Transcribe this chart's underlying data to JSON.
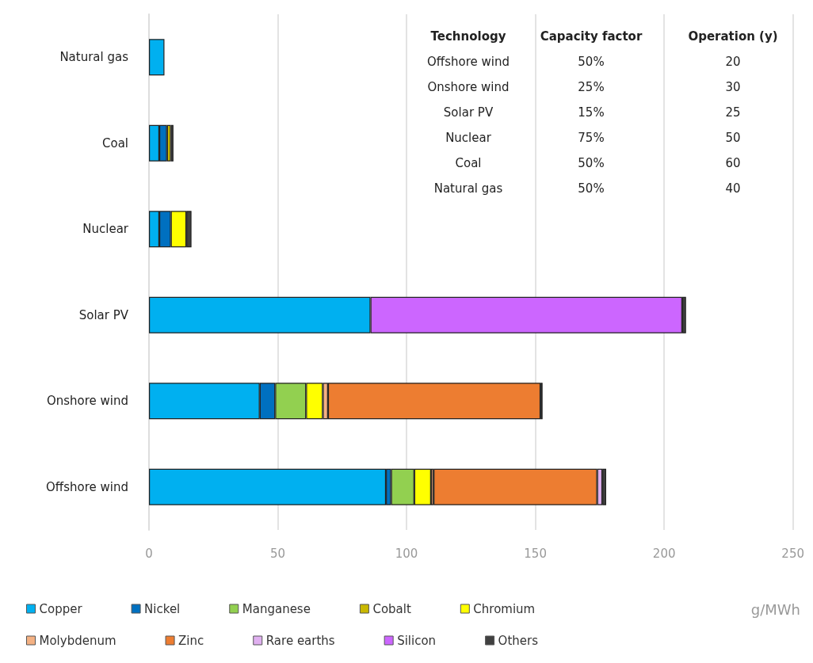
{
  "chart_data": {
    "type": "bar",
    "orientation": "horizontal",
    "stacked": true,
    "xlabel": "g/MWh",
    "categories": [
      "Natural gas",
      "Coal",
      "Nuclear",
      "Solar PV",
      "Onshore wind",
      "Offshore wind"
    ],
    "series": [
      {
        "name": "Copper",
        "color": "#00b0f0",
        "values": [
          6,
          4,
          4,
          86,
          43,
          92
        ]
      },
      {
        "name": "Nickel",
        "color": "#0070c0",
        "values": [
          null,
          3,
          4.5,
          null,
          6,
          2
        ]
      },
      {
        "name": "Manganese",
        "color": "#92d050",
        "values": [
          null,
          null,
          null,
          null,
          12,
          9
        ]
      },
      {
        "name": "Cobalt",
        "color": "#c9b800",
        "values": [
          null,
          1.5,
          null,
          null,
          null,
          null
        ]
      },
      {
        "name": "Chromium",
        "color": "#ffff00",
        "values": [
          null,
          null,
          6,
          null,
          6.5,
          6.5
        ]
      },
      {
        "name": "Molybdenum",
        "color": "#f4b183",
        "values": [
          null,
          null,
          null,
          null,
          2,
          1
        ]
      },
      {
        "name": "Zinc",
        "color": "#ed7d31",
        "values": [
          null,
          null,
          null,
          null,
          82.5,
          63.5
        ]
      },
      {
        "name": "Rare earths",
        "color": "#e0b0f0",
        "values": [
          null,
          null,
          null,
          null,
          null,
          2
        ]
      },
      {
        "name": "Silicon",
        "color": "#cc66ff",
        "values": [
          null,
          null,
          null,
          121,
          null,
          null
        ]
      },
      {
        "name": "Others",
        "color": "#404040",
        "values": [
          null,
          1,
          2,
          1.5,
          0.8,
          1.5
        ]
      }
    ],
    "xlim": [
      0,
      250
    ],
    "xticks": [
      0,
      50,
      100,
      150,
      200,
      250
    ],
    "grid": "x",
    "legend": "bottom",
    "annotations": [
      "Technology",
      "Capacity factor",
      "Operation (y)",
      "Offshore wind",
      "50%",
      "20",
      "Onshore wind",
      "25%",
      "30",
      "Solar PV",
      "15%",
      "25",
      "Nuclear",
      "75%",
      "50",
      "Coal",
      "50%",
      "60",
      "Natural gas",
      "50%",
      "40"
    ]
  }
}
